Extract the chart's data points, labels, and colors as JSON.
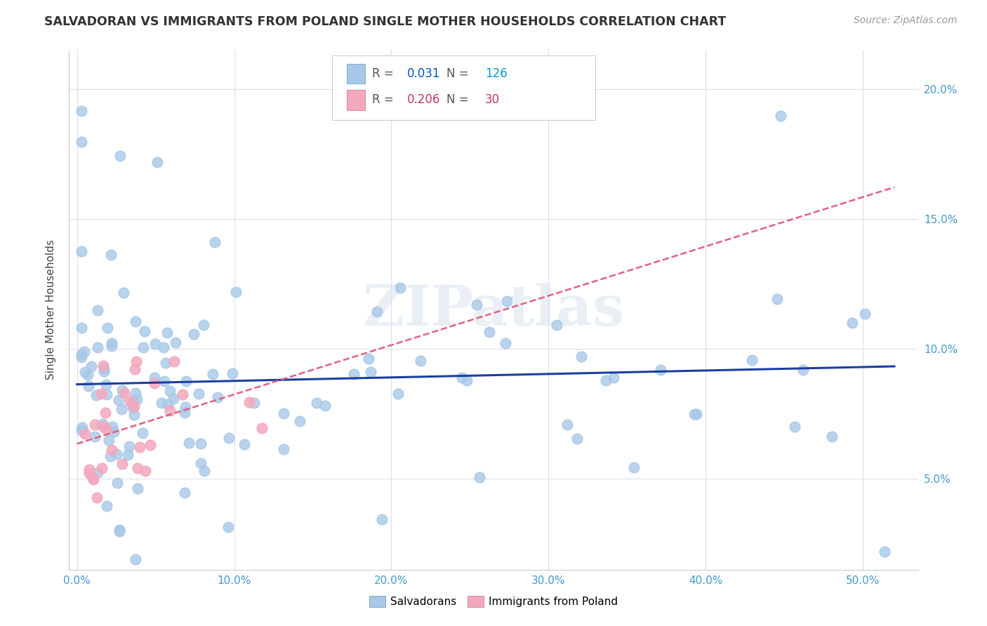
{
  "title": "SALVADORAN VS IMMIGRANTS FROM POLAND SINGLE MOTHER HOUSEHOLDS CORRELATION CHART",
  "source": "Source: ZipAtlas.com",
  "r_salvadoran": 0.031,
  "n_salvadoran": 126,
  "r_poland": 0.206,
  "n_poland": 30,
  "color_salvadoran": "#a8c8e8",
  "color_poland": "#f4a8bc",
  "color_line_salvadoran": "#1a3fa0",
  "color_line_poland": "#e06080",
  "watermark": "ZIPatlas",
  "legend_label_salvadoran": "Salvadorans",
  "legend_label_poland": "Immigrants from Poland",
  "ylabel": "Single Mother Households",
  "color_r_val_blue": "#0055cc",
  "color_n_val_blue": "#0099cc",
  "color_r_val_pink": "#cc3366",
  "color_n_val_pink": "#cc3366",
  "color_axis_labels": "#4499cc",
  "color_grid": "#ddddee",
  "color_title": "#333333",
  "color_source": "#999999"
}
